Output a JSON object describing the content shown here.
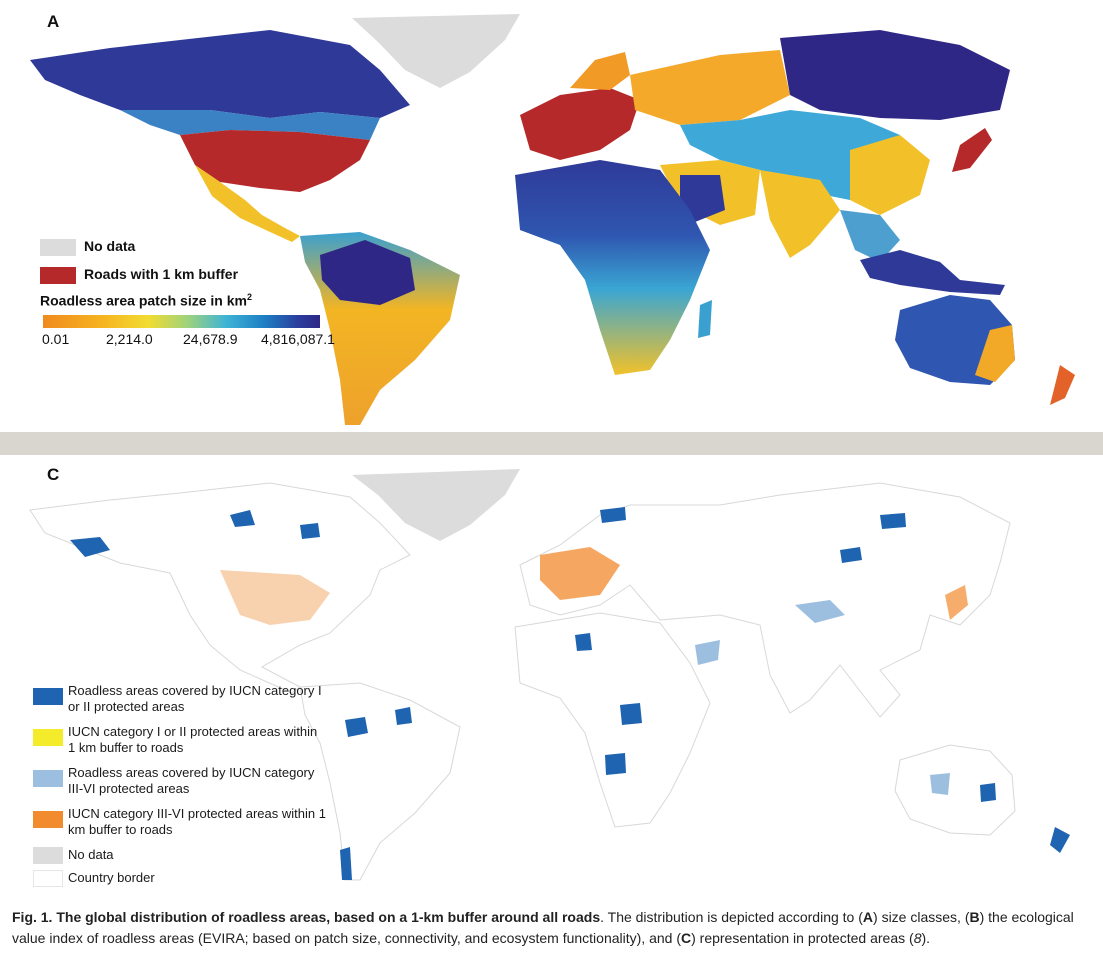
{
  "panel_a": {
    "label": "A",
    "legend": {
      "no_data": "No data",
      "roads": "Roads with 1 km buffer",
      "title": "Roadless area patch size in km",
      "title_sup": "2",
      "ticks": [
        "0.01",
        "2,214.0",
        "24,678.9",
        "4,816,087.1"
      ]
    }
  },
  "panel_c": {
    "label": "C",
    "legend": [
      {
        "label": "Roadless areas covered by IUCN category I or II protected areas",
        "color": "#1f64b0"
      },
      {
        "label": "IUCN category I or II protected areas within 1 km buffer to roads",
        "color": "#f4eb2b"
      },
      {
        "label": "Roadless areas covered by IUCN category III-VI protected areas",
        "color": "#9dbfdf"
      },
      {
        "label": "IUCN category III-VI protected areas within 1 km buffer to roads",
        "color": "#f28a2e"
      },
      {
        "label": "No data",
        "color": "#dcdcdc"
      },
      {
        "label": "Country border",
        "color": "#ffffff"
      }
    ]
  },
  "colors": {
    "no_data": "#dcdcdc",
    "roads": "#b5292a",
    "divider": "#d9d6cf"
  },
  "caption": {
    "heading": "Fig. 1. The global distribution of roadless areas, based on a 1-km buffer around all roads",
    "text_1": ". The distribution is depicted according to (",
    "a": "A",
    "text_2": ") size classes, (",
    "b": "B",
    "text_3": ") the ecological value index of roadless areas (EVIRA; based on patch size, connectivity, and ecosystem functionality), and (",
    "c": "C",
    "text_4": ") representation in protected areas (",
    "ref": "8",
    "text_5": ")."
  }
}
